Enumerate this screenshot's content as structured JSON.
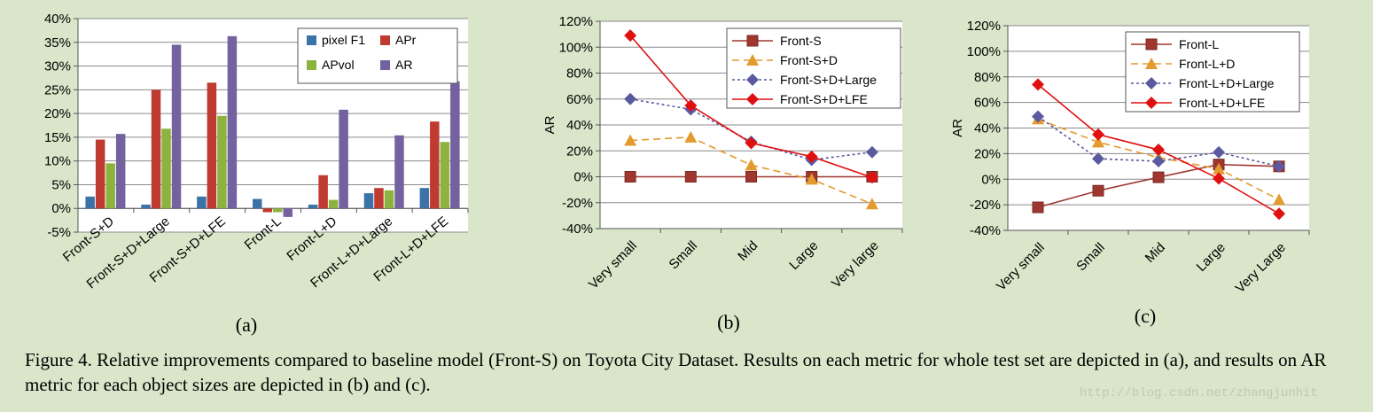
{
  "chart_data": [
    {
      "id": "a",
      "type": "bar",
      "categories": [
        "Front-S+D",
        "Front-S+D+Large",
        "Front-S+D+LFE",
        "Front-L",
        "Front-L+D",
        "Front-L+D+Large",
        "Front-L+D+LFE"
      ],
      "series": [
        {
          "name": "pixel F1",
          "color": "#3b73a8",
          "values": [
            2.5,
            0.8,
            2.5,
            2.0,
            0.8,
            3.2,
            4.3
          ]
        },
        {
          "name": "APr",
          "color": "#bf3a30",
          "values": [
            14.5,
            25.0,
            26.5,
            -0.8,
            7.0,
            4.3,
            18.3
          ]
        },
        {
          "name": "APvol",
          "color": "#8db33f",
          "values": [
            9.5,
            16.8,
            19.5,
            -0.8,
            1.8,
            3.8,
            14.0
          ]
        },
        {
          "name": "AR",
          "color": "#7462a0",
          "values": [
            15.7,
            34.5,
            36.3,
            -1.8,
            20.8,
            15.4,
            26.8
          ]
        }
      ],
      "ylim": [
        -5,
        40
      ],
      "yticks": [
        "-5%",
        "0%",
        "5%",
        "10%",
        "15%",
        "20%",
        "25%",
        "30%",
        "35%",
        "40%"
      ],
      "legend_position": "top-right",
      "sublabel": "(a)"
    },
    {
      "id": "b",
      "type": "line",
      "categories": [
        "Very small",
        "Small",
        "Mid",
        "Large",
        "Very large"
      ],
      "ylabel": "AR",
      "ylim": [
        -40,
        120
      ],
      "yticks": [
        "-40%",
        "-20%",
        "0%",
        "20%",
        "40%",
        "60%",
        "80%",
        "100%",
        "120%"
      ],
      "series": [
        {
          "name": "Front-S",
          "color": "#a0372f",
          "dash": "",
          "marker": "square",
          "values": [
            0,
            0,
            0,
            0,
            0
          ]
        },
        {
          "name": "Front-S+D",
          "color": "#e39a2e",
          "dash": "8,5",
          "marker": "triangle",
          "values": [
            28,
            30.5,
            9,
            -2,
            -21
          ]
        },
        {
          "name": "Front-S+D+Large",
          "color": "#5b5aa0",
          "dash": "3,3",
          "marker": "diamond",
          "values": [
            60,
            52,
            27,
            13,
            19
          ]
        },
        {
          "name": "Front-S+D+LFE",
          "color": "#e01010",
          "dash": "",
          "marker": "diamond",
          "values": [
            109,
            55,
            26,
            15.5,
            -0.5
          ]
        }
      ],
      "legend_position": "top-right",
      "sublabel": "(b)"
    },
    {
      "id": "c",
      "type": "line",
      "categories": [
        "Very small",
        "Small",
        "Mid",
        "Large",
        "Very Large"
      ],
      "ylabel": "AR",
      "ylim": [
        -40,
        120
      ],
      "yticks": [
        "-40%",
        "-20%",
        "0%",
        "20%",
        "40%",
        "60%",
        "80%",
        "100%",
        "120%"
      ],
      "series": [
        {
          "name": "Front-L",
          "color": "#a0372f",
          "dash": "",
          "marker": "square",
          "values": [
            -22,
            -9,
            1.5,
            11.5,
            10
          ]
        },
        {
          "name": "Front-L+D",
          "color": "#e39a2e",
          "dash": "8,5",
          "marker": "triangle",
          "values": [
            47,
            29,
            17,
            8,
            -16
          ]
        },
        {
          "name": "Front-L+D+Large",
          "color": "#5b5aa0",
          "dash": "3,3",
          "marker": "diamond",
          "values": [
            49,
            16,
            14,
            21,
            10
          ]
        },
        {
          "name": "Front-L+D+LFE",
          "color": "#e01010",
          "dash": "",
          "marker": "diamond",
          "values": [
            74,
            35,
            23,
            0.5,
            -27
          ]
        }
      ],
      "legend_position": "top-right",
      "sublabel": "(c)"
    }
  ],
  "caption": "Figure 4. Relative improvements compared to baseline model (Front-S) on Toyota City Dataset. Results on each metric for whole test set are depicted in (a), and results on AR metric for each object sizes are depicted in (b) and (c).",
  "watermark": "http://blog.csdn.net/zhangjunhit"
}
